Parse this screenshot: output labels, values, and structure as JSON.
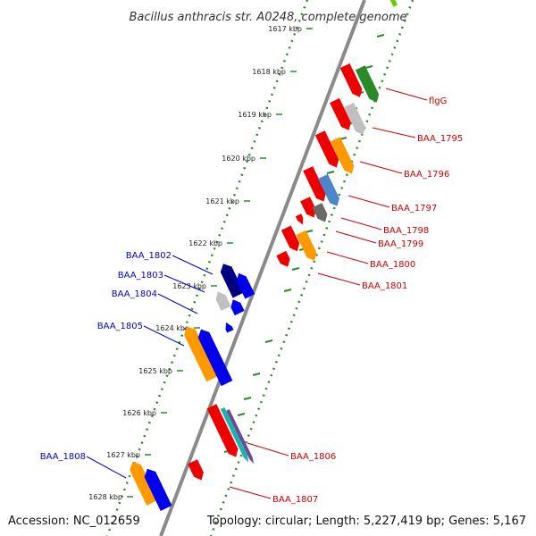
{
  "title": "Bacillus anthracis str. A0248, complete genome",
  "footer": {
    "accession": "Accession: NC_012659",
    "summary": "Topology: circular; Length: 5,227,419 bp; Genes: 5,167"
  },
  "kbp_ticks": [
    "1617 kbp",
    "1618 kbp",
    "1619 kbp",
    "1620 kbp",
    "1621 kbp",
    "1622 kbp",
    "1623 kbp",
    "1624 kbp",
    "1625 kbp",
    "1626 kbp",
    "1627 kbp",
    "1628 kbp"
  ],
  "colors": {
    "backbone": "#8a8a8a",
    "forward_track": "#2a8a2a",
    "red": "#ee0000",
    "green": "#2a8a2a",
    "light_gray": "#c0c0c0",
    "dark_gray": "#6a6a6a",
    "orange": "#ff9900",
    "steel_blue": "#4a86c8",
    "navy": "#000080",
    "blue": "#0000ee",
    "teal": "#20b2aa",
    "purple": "#6a4a9a",
    "label_blue": "#0000cc",
    "label_red": "#cc0000"
  },
  "gene_labels_left": [
    "BAA_1802",
    "BAA_1803",
    "BAA_1804",
    "BAA_1805",
    "BAA_1808"
  ],
  "gene_labels_right": [
    "flgG",
    "BAA_1795",
    "BAA_1796",
    "BAA_1797",
    "BAA_1798",
    "BAA_1799",
    "BAA_1800",
    "BAA_1801",
    "BAA_1806",
    "BAA_1807"
  ]
}
